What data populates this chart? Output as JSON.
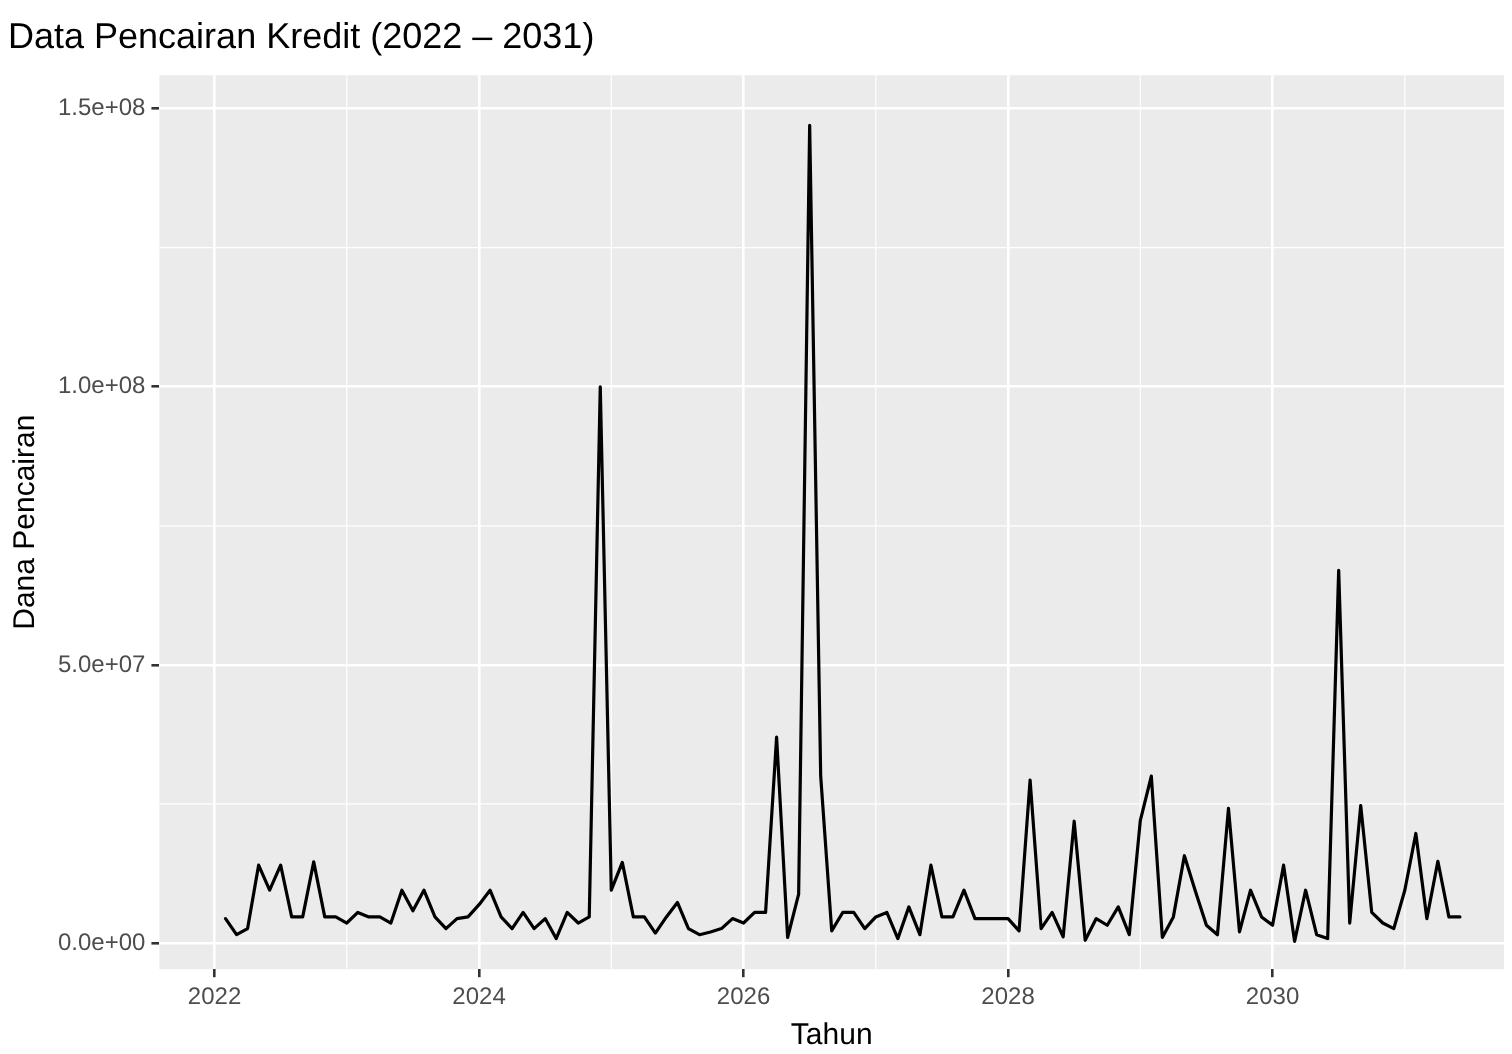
{
  "chart_data": {
    "type": "line",
    "title": "Data Pencairan Kredit (2022 – 2031)",
    "xlabel": "Tahun",
    "ylabel": "Dana Pencairan",
    "x": [
      "2022-02",
      "2022-03",
      "2022-04",
      "2022-05",
      "2022-06",
      "2022-07",
      "2022-08",
      "2022-09",
      "2022-10",
      "2022-11",
      "2022-12",
      "2023-01",
      "2023-02",
      "2023-03",
      "2023-04",
      "2023-05",
      "2023-06",
      "2023-07",
      "2023-08",
      "2023-09",
      "2023-10",
      "2023-11",
      "2023-12",
      "2024-01",
      "2024-02",
      "2024-03",
      "2024-04",
      "2024-05",
      "2024-06",
      "2024-07",
      "2024-08",
      "2024-09",
      "2024-10",
      "2024-11",
      "2024-12",
      "2025-01",
      "2025-02",
      "2025-03",
      "2025-04",
      "2025-05",
      "2025-06",
      "2025-07",
      "2025-08",
      "2025-09",
      "2025-10",
      "2025-11",
      "2025-12",
      "2026-01",
      "2026-02",
      "2026-03",
      "2026-04",
      "2026-05",
      "2026-06",
      "2026-07",
      "2026-08",
      "2026-09",
      "2026-10",
      "2026-11",
      "2026-12",
      "2027-01",
      "2027-02",
      "2027-03",
      "2027-04",
      "2027-05",
      "2027-06",
      "2027-07",
      "2027-08",
      "2027-09",
      "2027-10",
      "2027-11",
      "2027-12",
      "2028-01",
      "2028-02",
      "2028-03",
      "2028-04",
      "2028-05",
      "2028-06",
      "2028-07",
      "2028-08",
      "2028-09",
      "2028-10",
      "2028-11",
      "2028-12",
      "2029-01",
      "2029-02",
      "2029-03",
      "2029-04",
      "2029-05",
      "2029-06",
      "2029-07",
      "2029-08",
      "2029-09",
      "2029-10",
      "2029-11",
      "2029-12",
      "2030-01",
      "2030-02",
      "2030-03",
      "2030-04",
      "2030-05",
      "2030-06",
      "2030-07",
      "2030-08",
      "2030-09",
      "2030-10",
      "2030-11",
      "2030-12",
      "2031-01",
      "2031-02",
      "2031-03",
      "2031-04",
      "2031-05",
      "2031-06"
    ],
    "series": [
      {
        "color": "#000000",
        "values": [
          4400000,
          1500000,
          2600000,
          14000000,
          9500000,
          14000000,
          4700000,
          4700000,
          14600000,
          4700000,
          4700000,
          3600000,
          5500000,
          4700000,
          4700000,
          3600000,
          9500000,
          5800000,
          9500000,
          4700000,
          2600000,
          4400000,
          4700000,
          6900000,
          9500000,
          4700000,
          2600000,
          5500000,
          2600000,
          4400000,
          800000,
          5500000,
          3600000,
          4700000,
          100000000,
          9500000,
          14500000,
          4700000,
          4700000,
          1800000,
          4700000,
          7300000,
          2600000,
          1500000,
          2000000,
          2600000,
          4400000,
          3600000,
          5500000,
          5500000,
          37000000,
          1000000,
          8800000,
          147000000,
          30000000,
          2200000,
          5500000,
          5500000,
          2600000,
          4700000,
          5500000,
          800000,
          6500000,
          1500000,
          14000000,
          4700000,
          4700000,
          9500000,
          4400000,
          4400000,
          4400000,
          4400000,
          2200000,
          29300000,
          2600000,
          5500000,
          1100000,
          21900000,
          500000,
          4400000,
          3200000,
          6500000,
          1500000,
          22000000,
          30000000,
          1000000,
          4700000,
          15700000,
          9300000,
          3200000,
          1500000,
          24200000,
          2000000,
          9500000,
          4700000,
          3200000,
          14000000,
          300000,
          9500000,
          1500000,
          800000,
          67000000,
          3600000,
          24700000,
          5500000,
          3600000,
          2600000,
          9500000,
          19700000,
          4400000,
          14700000,
          4700000,
          4700000
        ]
      }
    ],
    "xlim": [
      "2021-08",
      "2031-10"
    ],
    "xticks": [
      "2022",
      "2024",
      "2026",
      "2028",
      "2030"
    ],
    "ylim": [
      -4700000,
      156000000
    ],
    "yticks": [
      {
        "value": 0,
        "label": "0.0e+00"
      },
      {
        "value": 50000000,
        "label": "5.0e+07"
      },
      {
        "value": 100000000,
        "label": "1.0e+08"
      },
      {
        "value": 150000000,
        "label": "1.5e+08"
      }
    ],
    "grid": true,
    "marker": "none",
    "line_style": "solid"
  }
}
